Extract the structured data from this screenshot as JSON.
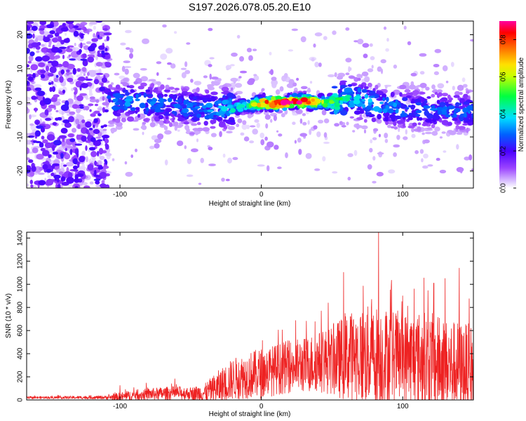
{
  "title": "S197.2026.078.05.20.E10",
  "chart_data": [
    {
      "type": "heatmap",
      "xlabel": "Height of straight line (km)",
      "ylabel": "Frequency (Hz)",
      "xlim": [
        -166,
        150
      ],
      "ylim": [
        -25,
        24
      ],
      "xticks": [
        -100,
        0,
        100
      ],
      "xtick_labels": [
        "-100",
        "0",
        "100"
      ],
      "yticks": [
        -20,
        -10,
        0,
        10,
        20
      ],
      "ytick_labels": [
        "-20",
        "-10",
        "0",
        "10",
        "20"
      ],
      "colorbar": {
        "label": "Normalized spectral amplitude",
        "range": [
          0.0,
          0.9
        ],
        "ticks": [
          0.0,
          0.2,
          0.4,
          0.6,
          0.8
        ],
        "tick_labels": [
          "0.0",
          "0.2",
          "0.4",
          "0.6",
          "0.8"
        ]
      },
      "ridge_frequency_hz": [
        [
          -110,
          0
        ],
        [
          -90,
          0.5
        ],
        [
          -60,
          -1
        ],
        [
          -40,
          -2
        ],
        [
          -20,
          -1.5
        ],
        [
          0,
          0
        ],
        [
          15,
          0
        ],
        [
          30,
          0.5
        ],
        [
          45,
          0
        ],
        [
          65,
          1.5
        ],
        [
          85,
          -1
        ],
        [
          110,
          -2
        ],
        [
          140,
          -2.5
        ]
      ],
      "ridge_peak_amplitude": [
        [
          -110,
          0.28
        ],
        [
          -90,
          0.35
        ],
        [
          -60,
          0.3
        ],
        [
          -30,
          0.35
        ],
        [
          -10,
          0.5
        ],
        [
          0,
          0.8
        ],
        [
          15,
          0.9
        ],
        [
          30,
          0.88
        ],
        [
          45,
          0.6
        ],
        [
          65,
          0.4
        ],
        [
          85,
          0.35
        ],
        [
          110,
          0.3
        ],
        [
          140,
          0.3
        ]
      ]
    },
    {
      "type": "line",
      "xlabel": "Height of straight line (km)",
      "ylabel": "SNR (10 * v/v)",
      "xlim": [
        -166,
        150
      ],
      "ylim": [
        0,
        1450
      ],
      "xticks": [
        -100,
        0,
        100
      ],
      "xtick_labels": [
        "-100",
        "0",
        "100"
      ],
      "yticks": [
        0,
        200,
        400,
        600,
        800,
        1000,
        1200,
        1400
      ],
      "ytick_labels": [
        "0",
        "200",
        "400",
        "600",
        "800",
        "1000",
        "1200",
        "1400"
      ],
      "color": "#ee2222",
      "envelope": {
        "x": [
          -166,
          -110,
          -100,
          -90,
          -80,
          -70,
          -60,
          -50,
          -40,
          -30,
          -20,
          -10,
          0,
          10,
          20,
          30,
          40,
          50,
          60,
          70,
          80,
          90,
          100,
          110,
          120,
          130,
          140,
          150
        ],
        "baseline": [
          20,
          22,
          25,
          40,
          50,
          55,
          60,
          55,
          60,
          110,
          180,
          210,
          230,
          260,
          290,
          300,
          330,
          340,
          370,
          380,
          380,
          370,
          360,
          350,
          340,
          300,
          280,
          270
        ],
        "amplitude": [
          10,
          15,
          40,
          45,
          50,
          55,
          60,
          55,
          80,
          150,
          180,
          200,
          220,
          220,
          230,
          240,
          260,
          300,
          380,
          420,
          450,
          430,
          400,
          420,
          420,
          400,
          400,
          380
        ]
      },
      "spikes": [
        {
          "x": -100,
          "y": 125
        },
        {
          "x": 12,
          "y": 605
        },
        {
          "x": 63,
          "y": 720
        },
        {
          "x": 72,
          "y": 985
        },
        {
          "x": 78,
          "y": 870
        },
        {
          "x": 83,
          "y": 1450
        },
        {
          "x": 92,
          "y": 1035
        },
        {
          "x": 100,
          "y": 900
        },
        {
          "x": 108,
          "y": 960
        },
        {
          "x": 115,
          "y": 1055
        },
        {
          "x": 122,
          "y": 1010
        },
        {
          "x": 130,
          "y": 1050
        },
        {
          "x": 140,
          "y": 1140
        },
        {
          "x": 147,
          "y": 875
        }
      ]
    }
  ]
}
